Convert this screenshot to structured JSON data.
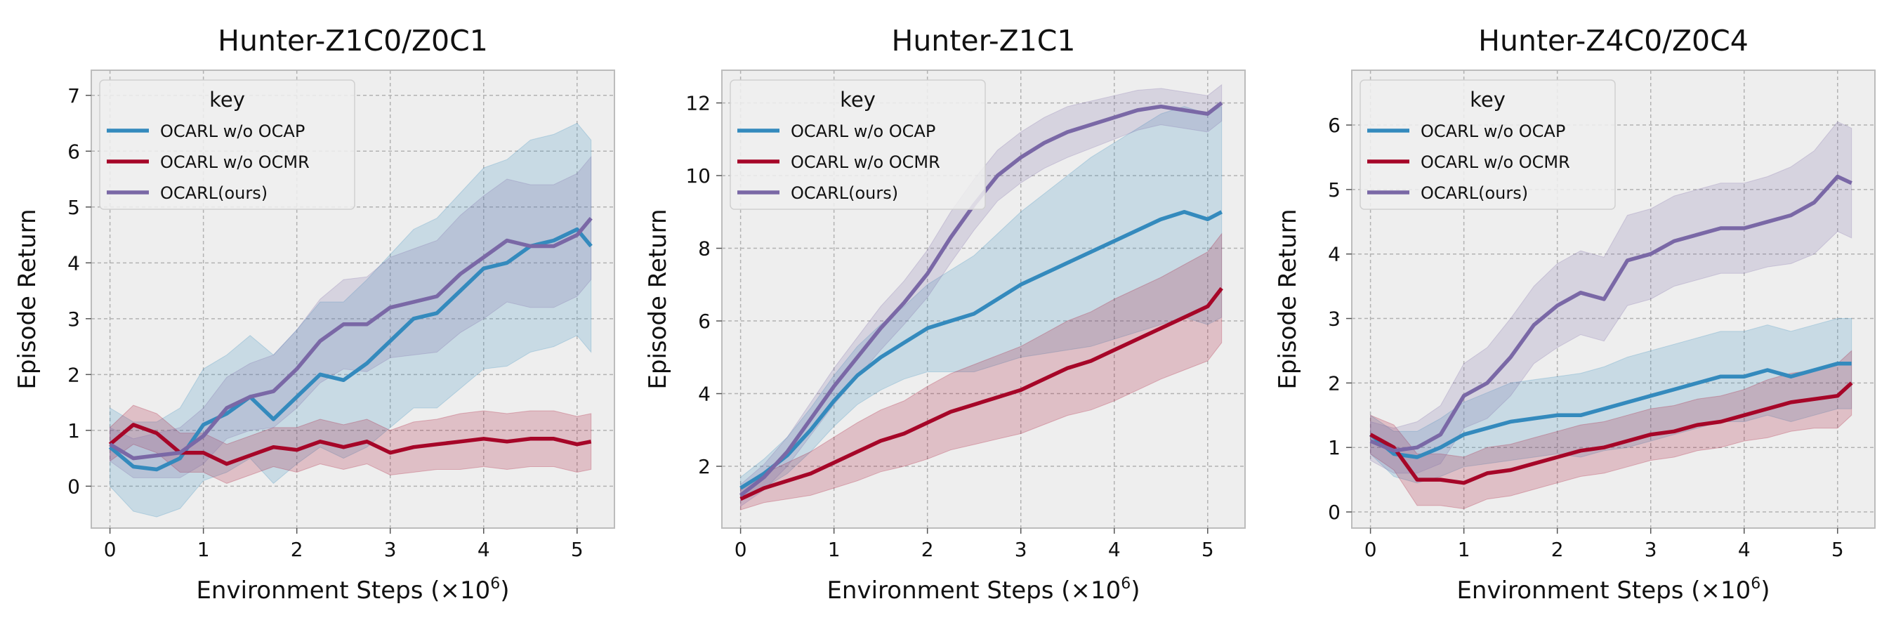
{
  "chart_data": [
    {
      "type": "line",
      "title": "Hunter-Z1C0/Z0C1",
      "xlabel": "Environment Steps (×10",
      "xlabel_sup": "6",
      "xlabel_end": ")",
      "ylabel": "Episode Return",
      "xlim": [
        -0.2,
        5.4
      ],
      "ylim": [
        -0.75,
        7.45
      ],
      "xticks": [
        0,
        1,
        2,
        3,
        4,
        5
      ],
      "yticks": [
        0,
        1,
        2,
        3,
        4,
        5,
        6,
        7
      ],
      "legend_title": "key",
      "legend_position": "top-left",
      "x": [
        0,
        0.25,
        0.5,
        0.75,
        1.0,
        1.25,
        1.5,
        1.75,
        2.0,
        2.25,
        2.5,
        2.75,
        3.0,
        3.25,
        3.5,
        3.75,
        4.0,
        4.25,
        4.5,
        4.75,
        5.0,
        5.15
      ],
      "series": [
        {
          "name": "OCARL w/o OCAP",
          "color": "#348ABD",
          "values": [
            0.7,
            0.35,
            0.3,
            0.5,
            1.1,
            1.3,
            1.6,
            1.2,
            1.6,
            2.0,
            1.9,
            2.2,
            2.6,
            3.0,
            3.1,
            3.5,
            3.9,
            4.0,
            4.3,
            4.4,
            4.6,
            4.3
          ],
          "band": [
            0.7,
            0.8,
            0.85,
            0.9,
            1.0,
            1.05,
            1.1,
            1.15,
            1.2,
            1.3,
            1.4,
            1.5,
            1.55,
            1.6,
            1.7,
            1.75,
            1.8,
            1.85,
            1.9,
            1.9,
            1.9,
            1.9
          ]
        },
        {
          "name": "OCARL w/o OCMR",
          "color": "#A60628",
          "values": [
            0.75,
            1.1,
            0.95,
            0.6,
            0.6,
            0.4,
            0.55,
            0.7,
            0.65,
            0.8,
            0.7,
            0.8,
            0.6,
            0.7,
            0.75,
            0.8,
            0.85,
            0.8,
            0.85,
            0.85,
            0.75,
            0.8
          ],
          "band": [
            0.3,
            0.35,
            0.35,
            0.35,
            0.35,
            0.35,
            0.35,
            0.35,
            0.4,
            0.4,
            0.4,
            0.4,
            0.4,
            0.45,
            0.45,
            0.5,
            0.5,
            0.5,
            0.5,
            0.5,
            0.5,
            0.5
          ]
        },
        {
          "name": "OCARL(ours)",
          "color": "#7A68A6",
          "values": [
            0.75,
            0.5,
            0.55,
            0.6,
            0.9,
            1.4,
            1.6,
            1.7,
            2.1,
            2.6,
            2.9,
            2.9,
            3.2,
            3.3,
            3.4,
            3.8,
            4.1,
            4.4,
            4.3,
            4.3,
            4.5,
            4.8
          ],
          "band": [
            0.3,
            0.35,
            0.4,
            0.45,
            0.5,
            0.55,
            0.6,
            0.65,
            0.7,
            0.75,
            0.8,
            0.85,
            0.9,
            0.95,
            1.0,
            1.05,
            1.1,
            1.1,
            1.1,
            1.1,
            1.1,
            1.1
          ]
        }
      ]
    },
    {
      "type": "line",
      "title": "Hunter-Z1C1",
      "xlabel": "Environment Steps (×10",
      "xlabel_sup": "6",
      "xlabel_end": ")",
      "ylabel": "Episode Return",
      "xlim": [
        -0.2,
        5.4
      ],
      "ylim": [
        0.3,
        12.9
      ],
      "xticks": [
        0,
        1,
        2,
        3,
        4,
        5
      ],
      "yticks": [
        2,
        4,
        6,
        8,
        10,
        12
      ],
      "legend_title": "key",
      "legend_position": "top-left",
      "x": [
        0,
        0.25,
        0.5,
        0.75,
        1.0,
        1.25,
        1.5,
        1.75,
        2.0,
        2.25,
        2.5,
        2.75,
        3.0,
        3.25,
        3.5,
        3.75,
        4.0,
        4.25,
        4.5,
        4.75,
        5.0,
        5.15
      ],
      "series": [
        {
          "name": "OCARL w/o OCAP",
          "color": "#348ABD",
          "values": [
            1.4,
            1.8,
            2.3,
            3.0,
            3.8,
            4.5,
            5.0,
            5.4,
            5.8,
            6.0,
            6.2,
            6.6,
            7.0,
            7.3,
            7.6,
            7.9,
            8.2,
            8.5,
            8.8,
            9.0,
            8.8,
            9.0
          ],
          "band": [
            0.3,
            0.4,
            0.5,
            0.6,
            0.7,
            0.8,
            0.9,
            1.0,
            1.2,
            1.4,
            1.6,
            1.8,
            2.0,
            2.2,
            2.4,
            2.6,
            2.7,
            2.8,
            2.9,
            2.9,
            2.9,
            2.9
          ]
        },
        {
          "name": "OCARL w/o OCMR",
          "color": "#A60628",
          "values": [
            1.1,
            1.4,
            1.6,
            1.8,
            2.1,
            2.4,
            2.7,
            2.9,
            3.2,
            3.5,
            3.7,
            3.9,
            4.1,
            4.4,
            4.7,
            4.9,
            5.2,
            5.5,
            5.8,
            6.1,
            6.4,
            6.9
          ],
          "band": [
            0.3,
            0.4,
            0.5,
            0.6,
            0.7,
            0.8,
            0.85,
            0.9,
            1.0,
            1.05,
            1.1,
            1.15,
            1.2,
            1.25,
            1.3,
            1.35,
            1.4,
            1.4,
            1.4,
            1.45,
            1.5,
            1.5
          ]
        },
        {
          "name": "OCARL(ours)",
          "color": "#7A68A6",
          "values": [
            1.2,
            1.7,
            2.4,
            3.3,
            4.2,
            5.0,
            5.8,
            6.5,
            7.3,
            8.3,
            9.2,
            10.0,
            10.5,
            10.9,
            11.2,
            11.4,
            11.6,
            11.8,
            11.9,
            11.8,
            11.7,
            12.0
          ],
          "band": [
            0.3,
            0.35,
            0.4,
            0.45,
            0.5,
            0.55,
            0.6,
            0.6,
            0.65,
            0.7,
            0.7,
            0.7,
            0.7,
            0.7,
            0.7,
            0.65,
            0.6,
            0.55,
            0.5,
            0.5,
            0.5,
            0.5
          ]
        }
      ]
    },
    {
      "type": "line",
      "title": "Hunter-Z4C0/Z0C4",
      "xlabel": "Environment Steps (×10",
      "xlabel_sup": "6",
      "xlabel_end": ")",
      "ylabel": "Episode Return",
      "xlim": [
        -0.2,
        5.4
      ],
      "ylim": [
        -0.25,
        6.85
      ],
      "xticks": [
        0,
        1,
        2,
        3,
        4,
        5
      ],
      "yticks": [
        0,
        1,
        2,
        3,
        4,
        5,
        6
      ],
      "legend_title": "key",
      "legend_position": "top-left",
      "x": [
        0,
        0.25,
        0.5,
        0.75,
        1.0,
        1.25,
        1.5,
        1.75,
        2.0,
        2.25,
        2.5,
        2.75,
        3.0,
        3.25,
        3.5,
        3.75,
        4.0,
        4.25,
        4.5,
        4.75,
        5.0,
        5.15
      ],
      "series": [
        {
          "name": "OCARL w/o OCAP",
          "color": "#348ABD",
          "values": [
            1.2,
            0.9,
            0.85,
            1.0,
            1.2,
            1.3,
            1.4,
            1.45,
            1.5,
            1.5,
            1.6,
            1.7,
            1.8,
            1.9,
            2.0,
            2.1,
            2.1,
            2.2,
            2.1,
            2.2,
            2.3,
            2.3
          ],
          "band": [
            0.3,
            0.35,
            0.4,
            0.45,
            0.5,
            0.55,
            0.6,
            0.6,
            0.6,
            0.65,
            0.65,
            0.7,
            0.7,
            0.7,
            0.7,
            0.7,
            0.7,
            0.7,
            0.7,
            0.7,
            0.7,
            0.7
          ]
        },
        {
          "name": "OCARL w/o OCMR",
          "color": "#A60628",
          "values": [
            1.2,
            1.0,
            0.5,
            0.5,
            0.45,
            0.6,
            0.65,
            0.75,
            0.85,
            0.95,
            1.0,
            1.1,
            1.2,
            1.25,
            1.35,
            1.4,
            1.5,
            1.6,
            1.7,
            1.75,
            1.8,
            2.0
          ],
          "band": [
            0.3,
            0.35,
            0.4,
            0.4,
            0.4,
            0.4,
            0.4,
            0.4,
            0.4,
            0.4,
            0.4,
            0.4,
            0.4,
            0.4,
            0.4,
            0.4,
            0.4,
            0.45,
            0.45,
            0.45,
            0.5,
            0.5
          ]
        },
        {
          "name": "OCARL(ours)",
          "color": "#7A68A6",
          "values": [
            1.1,
            0.95,
            1.0,
            1.2,
            1.8,
            2.0,
            2.4,
            2.9,
            3.2,
            3.4,
            3.3,
            3.9,
            4.0,
            4.2,
            4.3,
            4.4,
            4.4,
            4.5,
            4.6,
            4.8,
            5.2,
            5.1
          ],
          "band": [
            0.3,
            0.35,
            0.4,
            0.45,
            0.5,
            0.55,
            0.6,
            0.6,
            0.65,
            0.65,
            0.65,
            0.7,
            0.7,
            0.7,
            0.7,
            0.7,
            0.7,
            0.7,
            0.75,
            0.8,
            0.85,
            0.85
          ]
        }
      ]
    }
  ]
}
